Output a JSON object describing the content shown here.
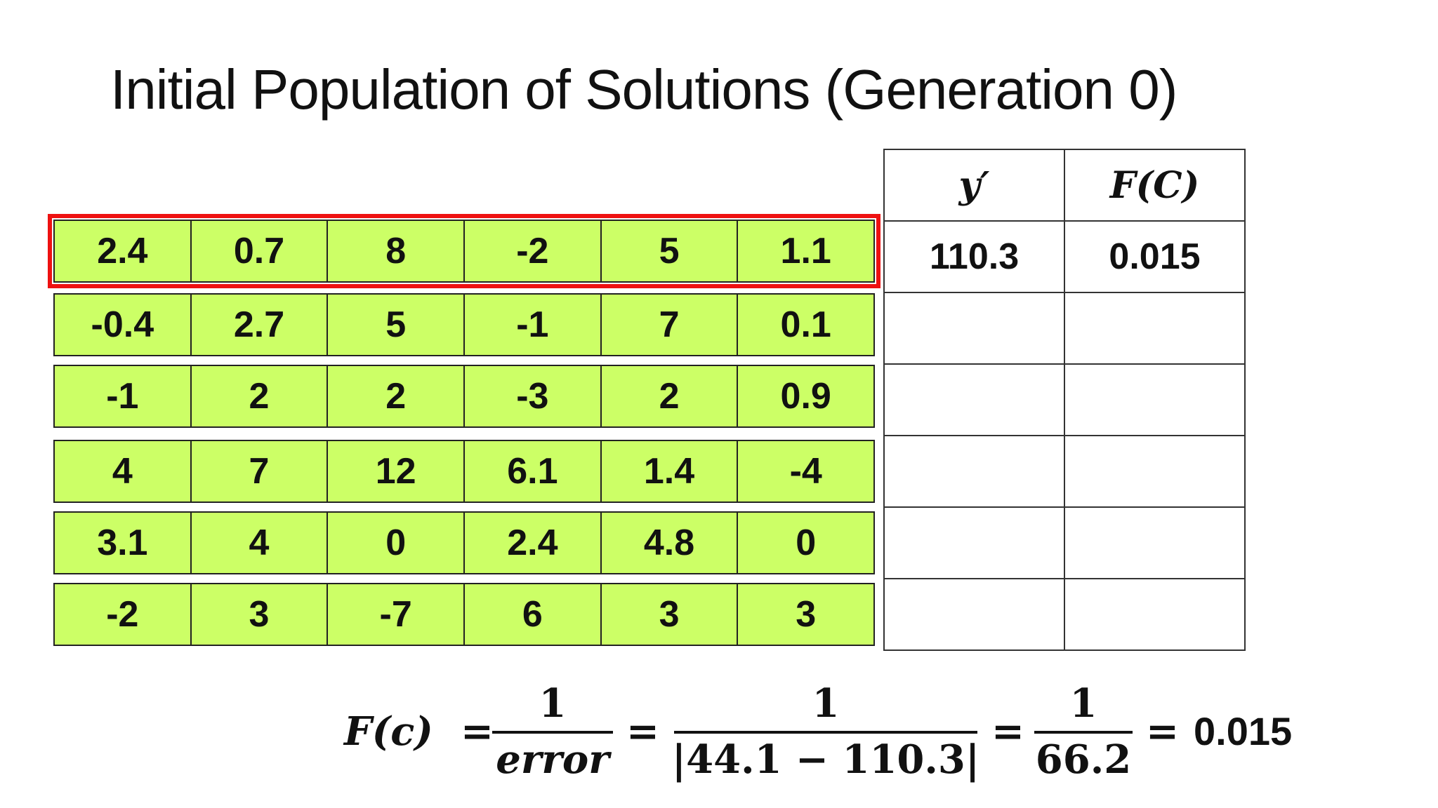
{
  "title": "Initial Population of Solutions (Generation 0)",
  "population": [
    [
      2.4,
      0.7,
      8,
      -2,
      5,
      1.1
    ],
    [
      -0.4,
      2.7,
      5,
      -1,
      7,
      0.1
    ],
    [
      -1,
      2,
      2,
      -3,
      2,
      0.9
    ],
    [
      4,
      7,
      12,
      6.1,
      1.4,
      -4
    ],
    [
      3.1,
      4,
      0,
      2.4,
      4.8,
      0
    ],
    [
      -2,
      3,
      -7,
      6,
      3,
      3
    ]
  ],
  "fitness_table": {
    "headers": [
      "y′",
      "F(C)"
    ],
    "rows": [
      [
        "110.3",
        "0.015"
      ]
    ]
  },
  "formula": {
    "lhs": "F(c)",
    "operator": "=",
    "fractions": [
      {
        "numerator": "1",
        "denominator": "error"
      },
      {
        "numerator": "1",
        "denominator": "|44.1 − 110.3|"
      },
      {
        "numerator": "1",
        "denominator": "66.2"
      }
    ],
    "result": "0.015"
  }
}
